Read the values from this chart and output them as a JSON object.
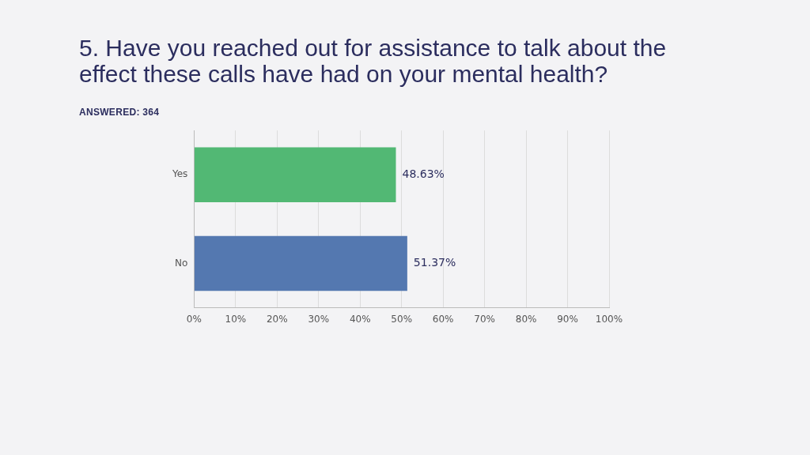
{
  "chart_data": {
    "type": "bar",
    "orientation": "horizontal",
    "title": "5. Have you reached out for assistance to talk about the effect these calls have had on your mental health?",
    "subtitle": "ANSWERED: 364",
    "categories": [
      "Yes",
      "No"
    ],
    "values": [
      48.63,
      51.37
    ],
    "colors": [
      "#52b874",
      "#5478b0"
    ],
    "value_labels": [
      "48.63%",
      "51.37%"
    ],
    "xlim": [
      0,
      100
    ],
    "xticks": [
      {
        "value": 0,
        "label": "0%"
      },
      {
        "value": 10,
        "label": "10%"
      },
      {
        "value": 20,
        "label": "20%"
      },
      {
        "value": 30,
        "label": "30%"
      },
      {
        "value": 40,
        "label": "40%"
      },
      {
        "value": 50,
        "label": "50%"
      },
      {
        "value": 60,
        "label": "60%"
      },
      {
        "value": 70,
        "label": "70%"
      },
      {
        "value": 80,
        "label": "80%"
      },
      {
        "value": 90,
        "label": "90%"
      },
      {
        "value": 100,
        "label": "100%"
      }
    ],
    "grid": "x",
    "legend": false
  }
}
